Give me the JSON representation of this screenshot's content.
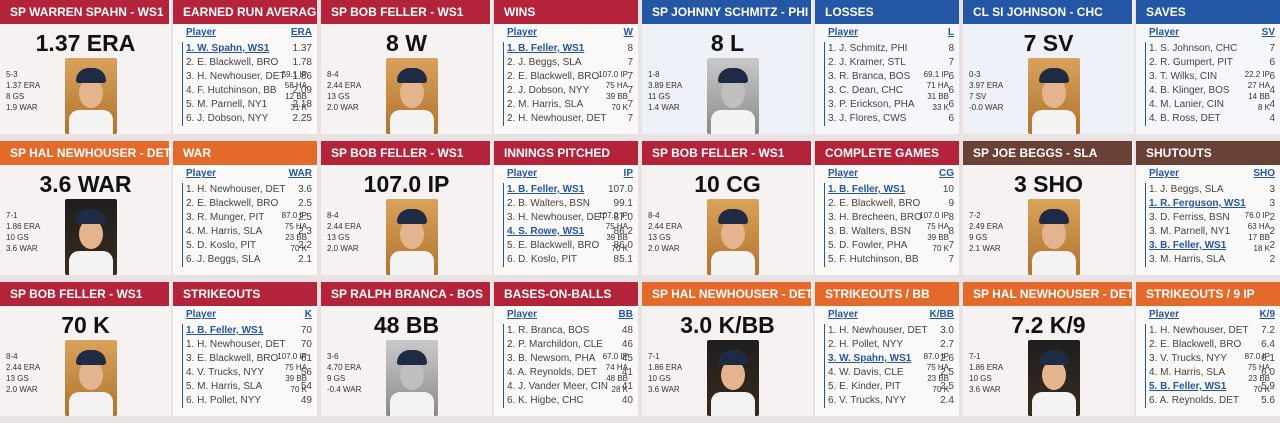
{
  "cards": [
    {
      "theme": "red",
      "player": "SP WARREN SPAHN - WS1",
      "category": "EARNED RUN AVERAGE",
      "big": "1.37 ERA",
      "photo": "color",
      "left_stats": [
        "5-3",
        "1.37 ERA",
        "8 GS",
        "1.9 WAR"
      ],
      "right_stats": [
        "59.1 IP",
        "58 HA",
        "12 BB",
        "31 K"
      ],
      "col_player": "Player",
      "col_stat": "ERA",
      "rows": [
        {
          "name": "1. W. Spahn, WS1",
          "value": "1.37",
          "hl": true
        },
        {
          "name": "2. E. Blackwell, BRO",
          "value": "1.78",
          "hl": false
        },
        {
          "name": "3. H. Newhouser, DET",
          "value": "1.86",
          "hl": false
        },
        {
          "name": "4. F. Hutchinson, BB",
          "value": "2.09",
          "hl": false
        },
        {
          "name": "5. M. Parnell, NY1",
          "value": "2.18",
          "hl": false
        },
        {
          "name": "6. J. Dobson, NYY",
          "value": "2.25",
          "hl": false
        }
      ]
    },
    {
      "theme": "red",
      "player": "SP BOB FELLER - WS1",
      "category": "WINS",
      "big": "8 W",
      "photo": "color",
      "left_stats": [
        "8-4",
        "2.44 ERA",
        "13 GS",
        "2.0 WAR"
      ],
      "right_stats": [
        "107.0 IP",
        "75 HA",
        "39 BB",
        "70 K"
      ],
      "col_player": "Player",
      "col_stat": "W",
      "rows": [
        {
          "name": "1. B. Feller, WS1",
          "value": "8",
          "hl": true
        },
        {
          "name": "2. J. Beggs, SLA",
          "value": "7",
          "hl": false
        },
        {
          "name": "2. E. Blackwell, BRO",
          "value": "7",
          "hl": false
        },
        {
          "name": "2. J. Dobson, NYY",
          "value": "7",
          "hl": false
        },
        {
          "name": "2. M. Harris, SLA",
          "value": "7",
          "hl": false
        },
        {
          "name": "2. H. Newhouser, DET",
          "value": "7",
          "hl": false
        }
      ]
    },
    {
      "theme": "blue",
      "player": "SP JOHNNY SCHMITZ - PHI",
      "category": "LOSSES",
      "big": "8 L",
      "photo": "bw",
      "left_stats": [
        "1-8",
        "3.89 ERA",
        "11 GS",
        "1.4 WAR"
      ],
      "right_stats": [
        "69.1 IP",
        "71 HA",
        "31 BB",
        "33 K"
      ],
      "col_player": "Player",
      "col_stat": "L",
      "rows": [
        {
          "name": "1. J. Schmitz, PHI",
          "value": "8",
          "hl": false
        },
        {
          "name": "2. J. Kramer, STL",
          "value": "7",
          "hl": false
        },
        {
          "name": "3. R. Branca, BOS",
          "value": "6",
          "hl": false
        },
        {
          "name": "3. C. Dean, CHC",
          "value": "6",
          "hl": false
        },
        {
          "name": "3. P. Erickson, PHA",
          "value": "6",
          "hl": false
        },
        {
          "name": "3. J. Flores, CWS",
          "value": "6",
          "hl": false
        }
      ]
    },
    {
      "theme": "blue",
      "player": "CL SI JOHNSON - CHC",
      "category": "SAVES",
      "big": "7 SV",
      "photo": "color",
      "left_stats": [
        "0-3",
        "3.97 ERA",
        "7 SV",
        "-0.0 WAR"
      ],
      "right_stats": [
        "22.2 IP",
        "27 HA",
        "14 BB",
        "8 K"
      ],
      "col_player": "Player",
      "col_stat": "SV",
      "rows": [
        {
          "name": "1. S. Johnson, CHC",
          "value": "7",
          "hl": false
        },
        {
          "name": "2. R. Gumpert, PIT",
          "value": "6",
          "hl": false
        },
        {
          "name": "3. T. Wilks, CIN",
          "value": "6",
          "hl": false
        },
        {
          "name": "4. B. Klinger, BOS",
          "value": "4",
          "hl": false
        },
        {
          "name": "4. M. Lanier, CIN",
          "value": "4",
          "hl": false
        },
        {
          "name": "4. B. Ross, DET",
          "value": "4",
          "hl": false
        }
      ]
    },
    {
      "theme": "orange",
      "player": "SP HAL NEWHOUSER - DET",
      "category": "WAR",
      "big": "3.6 WAR",
      "photo": "dark",
      "left_stats": [
        "7-1",
        "1.86 ERA",
        "10 GS",
        "3.6 WAR"
      ],
      "right_stats": [
        "87.0 IP",
        "75 HA",
        "23 BB",
        "70 K"
      ],
      "col_player": "Player",
      "col_stat": "WAR",
      "rows": [
        {
          "name": "1. H. Newhouser, DET",
          "value": "3.6",
          "hl": false
        },
        {
          "name": "2. E. Blackwell, BRO",
          "value": "2.5",
          "hl": false
        },
        {
          "name": "3. R. Munger, PIT",
          "value": "2.5",
          "hl": false
        },
        {
          "name": "4. M. Harris, SLA",
          "value": "2.3",
          "hl": false
        },
        {
          "name": "5. D. Koslo, PIT",
          "value": "2.2",
          "hl": false
        },
        {
          "name": "6. J. Beggs, SLA",
          "value": "2.1",
          "hl": false
        }
      ]
    },
    {
      "theme": "red",
      "player": "SP BOB FELLER - WS1",
      "category": "INNINGS PITCHED",
      "big": "107.0 IP",
      "photo": "color",
      "left_stats": [
        "8-4",
        "2.44 ERA",
        "13 GS",
        "2.0 WAR"
      ],
      "right_stats": [
        "107.0 IP",
        "75 HA",
        "39 BB",
        "70 K"
      ],
      "col_player": "Player",
      "col_stat": "IP",
      "rows": [
        {
          "name": "1. B. Feller, WS1",
          "value": "107.0",
          "hl": true
        },
        {
          "name": "2. B. Walters, BSN",
          "value": "99.1",
          "hl": false
        },
        {
          "name": "3. H. Newhouser, DET",
          "value": "87.0",
          "hl": false
        },
        {
          "name": "4. S. Rowe, WS1",
          "value": "86.2",
          "hl": true
        },
        {
          "name": "5. E. Blackwell, BRO",
          "value": "86.0",
          "hl": false
        },
        {
          "name": "6. D. Koslo, PIT",
          "value": "85.1",
          "hl": false
        }
      ]
    },
    {
      "theme": "red",
      "player": "SP BOB FELLER - WS1",
      "category": "COMPLETE GAMES",
      "big": "10 CG",
      "photo": "color",
      "left_stats": [
        "8-4",
        "2.44 ERA",
        "13 GS",
        "2.0 WAR"
      ],
      "right_stats": [
        "107.0 IP",
        "75 HA",
        "39 BB",
        "70 K"
      ],
      "col_player": "Player",
      "col_stat": "CG",
      "rows": [
        {
          "name": "1. B. Feller, WS1",
          "value": "10",
          "hl": true
        },
        {
          "name": "2. E. Blackwell, BRO",
          "value": "9",
          "hl": false
        },
        {
          "name": "3. H. Brecheen, BRO",
          "value": "8",
          "hl": false
        },
        {
          "name": "3. B. Walters, BSN",
          "value": "8",
          "hl": false
        },
        {
          "name": "5. D. Fowler, PHA",
          "value": "7",
          "hl": false
        },
        {
          "name": "5. F. Hutchinson, BB",
          "value": "7",
          "hl": false
        }
      ]
    },
    {
      "theme": "brown",
      "player": "SP JOE BEGGS - SLA",
      "category": "SHUTOUTS",
      "big": "3 SHO",
      "photo": "color",
      "left_stats": [
        "7-2",
        "2.49 ERA",
        "9 GS",
        "2.1 WAR"
      ],
      "right_stats": [
        "76.0 IP",
        "63 HA",
        "17 BB",
        "18 K"
      ],
      "col_player": "Player",
      "col_stat": "SHO",
      "rows": [
        {
          "name": "1. J. Beggs, SLA",
          "value": "3",
          "hl": false
        },
        {
          "name": "1. R. Ferguson, WS1",
          "value": "3",
          "hl": true
        },
        {
          "name": "3. D. Ferriss, BSN",
          "value": "2",
          "hl": false
        },
        {
          "name": "3. M. Parnell, NY1",
          "value": "2",
          "hl": false
        },
        {
          "name": "3. B. Feller, WS1",
          "value": "2",
          "hl": true
        },
        {
          "name": "3. M. Harris, SLA",
          "value": "2",
          "hl": false
        }
      ]
    },
    {
      "theme": "red",
      "player": "SP BOB FELLER - WS1",
      "category": "STRIKEOUTS",
      "big": "70 K",
      "photo": "color",
      "left_stats": [
        "8-4",
        "2.44 ERA",
        "13 GS",
        "2.0 WAR"
      ],
      "right_stats": [
        "107.0 IP",
        "75 HA",
        "39 BB",
        "70 K"
      ],
      "col_player": "Player",
      "col_stat": "K",
      "rows": [
        {
          "name": "1. B. Feller, WS1",
          "value": "70",
          "hl": true
        },
        {
          "name": "1. H. Newhouser, DET",
          "value": "70",
          "hl": false
        },
        {
          "name": "3. E. Blackwell, BRO",
          "value": "61",
          "hl": false
        },
        {
          "name": "4. V. Trucks, NYY",
          "value": "56",
          "hl": false
        },
        {
          "name": "5. M. Harris, SLA",
          "value": "54",
          "hl": false
        },
        {
          "name": "6. H. Pollet, NYY",
          "value": "49",
          "hl": false
        }
      ]
    },
    {
      "theme": "red",
      "player": "SP RALPH BRANCA - BOS",
      "category": "BASES-ON-BALLS",
      "big": "48 BB",
      "photo": "bw",
      "left_stats": [
        "3-6",
        "4.70 ERA",
        "9 GS",
        "-0.4 WAR"
      ],
      "right_stats": [
        "67.0 IP",
        "74 HA",
        "48 BB",
        "28 K"
      ],
      "col_player": "Player",
      "col_stat": "BB",
      "rows": [
        {
          "name": "1. R. Branca, BOS",
          "value": "48",
          "hl": false
        },
        {
          "name": "2. P. Marchildon, CLE",
          "value": "46",
          "hl": false
        },
        {
          "name": "3. B. Newsom, PHA",
          "value": "45",
          "hl": false
        },
        {
          "name": "4. A. Reynolds, DET",
          "value": "41",
          "hl": false
        },
        {
          "name": "4. J. Vander Meer, CIN",
          "value": "41",
          "hl": false
        },
        {
          "name": "6. K. Higbe, CHC",
          "value": "40",
          "hl": false
        }
      ]
    },
    {
      "theme": "orange",
      "player": "SP HAL NEWHOUSER - DET",
      "category": "STRIKEOUTS / BB",
      "big": "3.0 K/BB",
      "photo": "dark",
      "left_stats": [
        "7-1",
        "1.86 ERA",
        "10 GS",
        "3.6 WAR"
      ],
      "right_stats": [
        "87.0 IP",
        "75 HA",
        "23 BB",
        "70 K"
      ],
      "col_player": "Player",
      "col_stat": "K/BB",
      "rows": [
        {
          "name": "1. H. Newhouser, DET",
          "value": "3.0",
          "hl": false
        },
        {
          "name": "2. H. Pollet, NYY",
          "value": "2.7",
          "hl": false
        },
        {
          "name": "3. W. Spahn, WS1",
          "value": "2.6",
          "hl": true
        },
        {
          "name": "4. W. Davis, CLE",
          "value": "2.5",
          "hl": false
        },
        {
          "name": "5. E. Kinder, PIT",
          "value": "2.5",
          "hl": false
        },
        {
          "name": "6. V. Trucks, NYY",
          "value": "2.4",
          "hl": false
        }
      ]
    },
    {
      "theme": "orange",
      "player": "SP HAL NEWHOUSER - DET",
      "category": "STRIKEOUTS / 9 IP",
      "big": "7.2 K/9",
      "photo": "dark",
      "left_stats": [
        "7-1",
        "1.86 ERA",
        "10 GS",
        "3.6 WAR"
      ],
      "right_stats": [
        "87.0 IP",
        "75 HA",
        "23 BB",
        "70 K"
      ],
      "col_player": "Player",
      "col_stat": "K/9",
      "rows": [
        {
          "name": "1. H. Newhouser, DET",
          "value": "7.2",
          "hl": false
        },
        {
          "name": "2. E. Blackwell, BRO",
          "value": "6.4",
          "hl": false
        },
        {
          "name": "3. V. Trucks, NYY",
          "value": "6.1",
          "hl": false
        },
        {
          "name": "4. M. Harris, SLA",
          "value": "6.0",
          "hl": false
        },
        {
          "name": "5. B. Feller, WS1",
          "value": "5.9",
          "hl": true
        },
        {
          "name": "6. A. Reynolds, DET",
          "value": "5.6",
          "hl": false
        }
      ]
    }
  ]
}
